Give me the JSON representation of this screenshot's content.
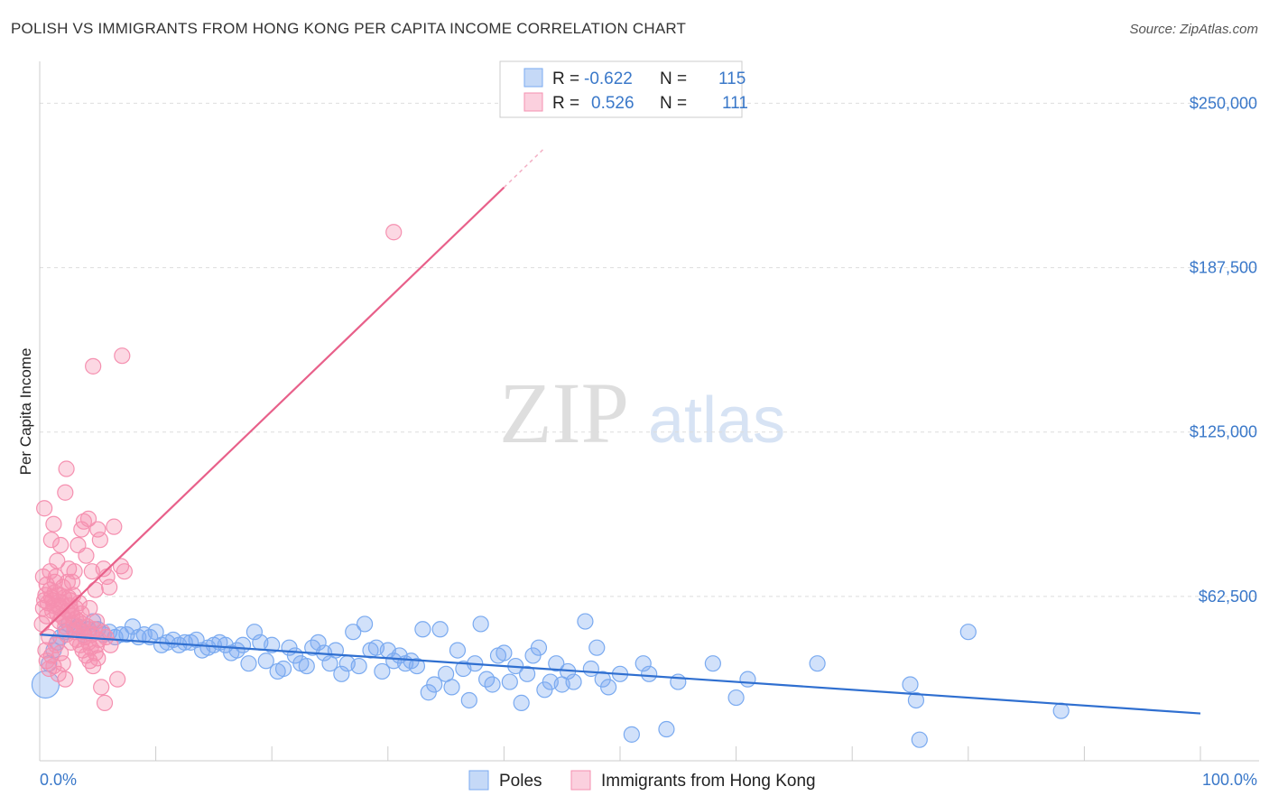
{
  "title": "POLISH VS IMMIGRANTS FROM HONG KONG PER CAPITA INCOME CORRELATION CHART",
  "source": "Source: ZipAtlas.com",
  "watermark": {
    "zip": "ZIP",
    "atlas": "atlas"
  },
  "legend_top": {
    "rows": [
      {
        "r_label": "R =",
        "r_value": "-0.622",
        "n_label": "N =",
        "n_value": "115",
        "color": "#7aaaf0"
      },
      {
        "r_label": "R =",
        "r_value": "0.526",
        "n_label": "N =",
        "n_value": "111",
        "color": "#f590b0"
      }
    ]
  },
  "legend_bottom": {
    "poles": "Poles",
    "hk": "Immigrants from Hong Kong"
  },
  "colors": {
    "poles": "#7aaaf0",
    "poles_line": "#2f6fd0",
    "hk": "#f590b0",
    "hk_line": "#e8608a",
    "axis_label": "#3a78c9"
  },
  "chart_data": {
    "type": "scatter",
    "xlabel": "",
    "ylabel": "Per Capita Income",
    "xlim": [
      0,
      100
    ],
    "ylim": [
      0,
      262500
    ],
    "x_tick_labels": [
      "0.0%",
      "100.0%"
    ],
    "y_ticks": [
      62500,
      125000,
      187500,
      250000
    ],
    "y_tick_labels": [
      "$62,500",
      "$125,000",
      "$187,500",
      "$250,000"
    ],
    "grid": true,
    "series": [
      {
        "name": "Poles",
        "points": [
          [
            0.5,
            29000
          ],
          [
            0.8,
            37000
          ],
          [
            1.2,
            42000
          ],
          [
            1.5,
            45000
          ],
          [
            1.8,
            47000
          ],
          [
            2.2,
            49000
          ],
          [
            2.5,
            52000
          ],
          [
            3.0,
            50000
          ],
          [
            3.3,
            51000
          ],
          [
            3.8,
            48000
          ],
          [
            4.2,
            50000
          ],
          [
            4.6,
            53000
          ],
          [
            5.0,
            50000
          ],
          [
            5.5,
            48000
          ],
          [
            6.0,
            49000
          ],
          [
            6.5,
            47000
          ],
          [
            7.0,
            48000
          ],
          [
            7.5,
            48000
          ],
          [
            8.0,
            51000
          ],
          [
            8.5,
            47000
          ],
          [
            9.0,
            48000
          ],
          [
            9.5,
            47000
          ],
          [
            10.0,
            49000
          ],
          [
            10.5,
            44000
          ],
          [
            11.0,
            45000
          ],
          [
            11.5,
            46000
          ],
          [
            12.0,
            44000
          ],
          [
            12.5,
            45000
          ],
          [
            13.0,
            45000
          ],
          [
            13.5,
            46000
          ],
          [
            14.0,
            42000
          ],
          [
            14.5,
            43000
          ],
          [
            15.0,
            44000
          ],
          [
            15.5,
            45000
          ],
          [
            16.0,
            44000
          ],
          [
            16.5,
            41000
          ],
          [
            17.0,
            42000
          ],
          [
            17.5,
            44000
          ],
          [
            18.0,
            37000
          ],
          [
            18.5,
            49000
          ],
          [
            19.0,
            45000
          ],
          [
            19.5,
            38000
          ],
          [
            20.0,
            44000
          ],
          [
            20.5,
            34000
          ],
          [
            21.0,
            35000
          ],
          [
            21.5,
            43000
          ],
          [
            22.0,
            40000
          ],
          [
            22.5,
            37000
          ],
          [
            23.0,
            36000
          ],
          [
            23.5,
            43000
          ],
          [
            24.0,
            45000
          ],
          [
            24.5,
            41000
          ],
          [
            25.0,
            37000
          ],
          [
            25.5,
            42000
          ],
          [
            26.0,
            33000
          ],
          [
            26.5,
            37000
          ],
          [
            27.0,
            49000
          ],
          [
            27.5,
            36000
          ],
          [
            28.0,
            52000
          ],
          [
            28.5,
            42000
          ],
          [
            29.0,
            43000
          ],
          [
            29.5,
            34000
          ],
          [
            30.0,
            42000
          ],
          [
            30.5,
            38000
          ],
          [
            31.0,
            40000
          ],
          [
            31.5,
            37000
          ],
          [
            32.0,
            38000
          ],
          [
            32.5,
            36000
          ],
          [
            33.0,
            50000
          ],
          [
            33.5,
            26000
          ],
          [
            34.0,
            29000
          ],
          [
            34.5,
            50000
          ],
          [
            35.0,
            33000
          ],
          [
            35.5,
            28000
          ],
          [
            36.0,
            42000
          ],
          [
            36.5,
            35000
          ],
          [
            37.0,
            23000
          ],
          [
            37.5,
            37000
          ],
          [
            38.0,
            52000
          ],
          [
            38.5,
            31000
          ],
          [
            39.0,
            29000
          ],
          [
            39.5,
            40000
          ],
          [
            40.0,
            41000
          ],
          [
            40.5,
            30000
          ],
          [
            41.0,
            36000
          ],
          [
            41.5,
            22000
          ],
          [
            42.0,
            33000
          ],
          [
            42.5,
            40000
          ],
          [
            43.0,
            43000
          ],
          [
            43.5,
            27000
          ],
          [
            44.0,
            30000
          ],
          [
            44.5,
            37000
          ],
          [
            45.0,
            29000
          ],
          [
            45.5,
            34000
          ],
          [
            46.0,
            30000
          ],
          [
            47.0,
            53000
          ],
          [
            47.5,
            35000
          ],
          [
            48.0,
            43000
          ],
          [
            48.5,
            31000
          ],
          [
            49.0,
            28000
          ],
          [
            50.0,
            33000
          ],
          [
            51.0,
            10000
          ],
          [
            52.0,
            37000
          ],
          [
            52.5,
            33000
          ],
          [
            54.0,
            12000
          ],
          [
            55.0,
            30000
          ],
          [
            58.0,
            37000
          ],
          [
            60.0,
            24000
          ],
          [
            61.0,
            31000
          ],
          [
            67.0,
            37000
          ],
          [
            75.0,
            29000
          ],
          [
            75.5,
            23000
          ],
          [
            75.8,
            8000
          ],
          [
            80.0,
            49000
          ],
          [
            88.0,
            19000
          ]
        ]
      },
      {
        "name": "Immigrants from Hong Kong",
        "points": [
          [
            0.2,
            52000
          ],
          [
            0.3,
            58000
          ],
          [
            0.4,
            61000
          ],
          [
            0.5,
            63000
          ],
          [
            0.6,
            55000
          ],
          [
            0.7,
            60000
          ],
          [
            0.8,
            47000
          ],
          [
            0.9,
            65000
          ],
          [
            1.0,
            62000
          ],
          [
            1.1,
            57000
          ],
          [
            1.2,
            59000
          ],
          [
            1.3,
            68000
          ],
          [
            1.4,
            70000
          ],
          [
            1.5,
            56000
          ],
          [
            1.6,
            63000
          ],
          [
            1.7,
            53000
          ],
          [
            1.8,
            58000
          ],
          [
            1.9,
            60000
          ],
          [
            2.0,
            66000
          ],
          [
            2.1,
            54000
          ],
          [
            2.2,
            51000
          ],
          [
            2.3,
            48000
          ],
          [
            2.4,
            57000
          ],
          [
            2.5,
            62000
          ],
          [
            2.6,
            59000
          ],
          [
            2.7,
            45000
          ],
          [
            2.8,
            55000
          ],
          [
            2.9,
            52000
          ],
          [
            3.0,
            49000
          ],
          [
            3.1,
            58000
          ],
          [
            3.2,
            46000
          ],
          [
            3.3,
            50000
          ],
          [
            3.4,
            53000
          ],
          [
            3.5,
            44000
          ],
          [
            3.6,
            56000
          ],
          [
            3.7,
            42000
          ],
          [
            3.8,
            49000
          ],
          [
            3.9,
            47000
          ],
          [
            4.0,
            40000
          ],
          [
            4.1,
            51000
          ],
          [
            4.2,
            45000
          ],
          [
            4.3,
            38000
          ],
          [
            4.4,
            43000
          ],
          [
            4.5,
            48000
          ],
          [
            4.6,
            36000
          ],
          [
            4.7,
            50000
          ],
          [
            4.8,
            41000
          ],
          [
            4.9,
            44000
          ],
          [
            5.0,
            39000
          ],
          [
            5.1,
            46000
          ],
          [
            0.5,
            42000
          ],
          [
            0.6,
            38000
          ],
          [
            0.8,
            35000
          ],
          [
            1.0,
            40000
          ],
          [
            1.2,
            36000
          ],
          [
            1.4,
            44000
          ],
          [
            1.6,
            33000
          ],
          [
            1.8,
            41000
          ],
          [
            2.0,
            37000
          ],
          [
            2.2,
            31000
          ],
          [
            0.4,
            96000
          ],
          [
            1.0,
            84000
          ],
          [
            1.2,
            90000
          ],
          [
            1.5,
            76000
          ],
          [
            1.8,
            82000
          ],
          [
            2.2,
            102000
          ],
          [
            2.3,
            111000
          ],
          [
            2.5,
            73000
          ],
          [
            2.8,
            68000
          ],
          [
            3.0,
            72000
          ],
          [
            3.3,
            82000
          ],
          [
            3.6,
            88000
          ],
          [
            3.8,
            91000
          ],
          [
            4.0,
            78000
          ],
          [
            4.2,
            92000
          ],
          [
            4.5,
            72000
          ],
          [
            4.8,
            65000
          ],
          [
            5.0,
            88000
          ],
          [
            5.2,
            84000
          ],
          [
            5.5,
            73000
          ],
          [
            5.8,
            70000
          ],
          [
            6.0,
            66000
          ],
          [
            6.4,
            89000
          ],
          [
            6.7,
            31000
          ],
          [
            7.0,
            74000
          ],
          [
            7.3,
            72000
          ],
          [
            5.3,
            28000
          ],
          [
            5.6,
            22000
          ],
          [
            4.6,
            150000
          ],
          [
            7.1,
            154000
          ],
          [
            30.5,
            201000
          ],
          [
            0.3,
            70000
          ],
          [
            0.6,
            67000
          ],
          [
            0.9,
            72000
          ],
          [
            1.1,
            61000
          ],
          [
            1.3,
            64000
          ],
          [
            1.7,
            59000
          ],
          [
            1.9,
            55000
          ],
          [
            2.1,
            62000
          ],
          [
            2.4,
            68000
          ],
          [
            2.6,
            61000
          ],
          [
            2.7,
            57000
          ],
          [
            2.9,
            63000
          ],
          [
            3.1,
            54000
          ],
          [
            3.4,
            60000
          ],
          [
            3.7,
            52000
          ],
          [
            4.3,
            58000
          ],
          [
            4.9,
            53000
          ],
          [
            5.4,
            49000
          ],
          [
            5.7,
            47000
          ],
          [
            6.1,
            44000
          ]
        ]
      }
    ],
    "trend_lines": [
      {
        "series": "Poles",
        "x": [
          0,
          100
        ],
        "y": [
          48000,
          18000
        ]
      },
      {
        "series": "Immigrants from Hong Kong",
        "x": [
          0,
          40
        ],
        "y": [
          48000,
          218000
        ],
        "extension_x": [
          40,
          43.5
        ],
        "extension_y": [
          218000,
          233000
        ]
      }
    ]
  }
}
